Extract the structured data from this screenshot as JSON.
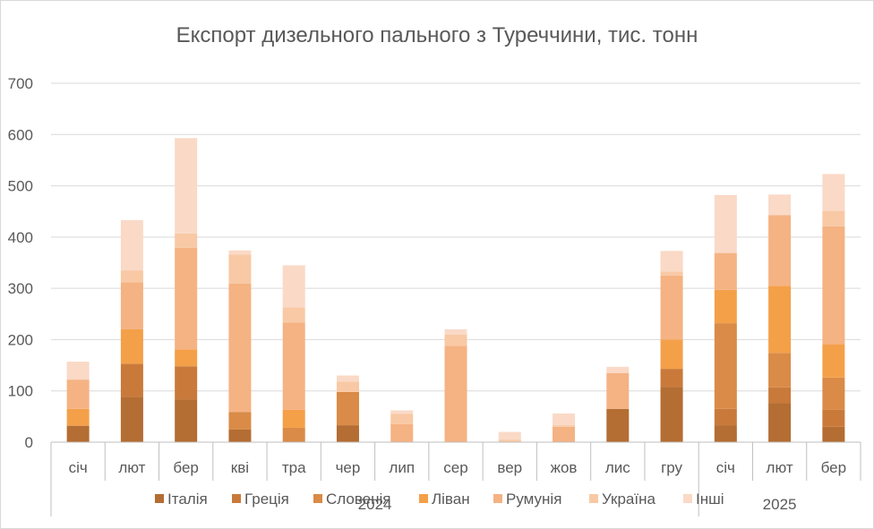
{
  "chart_data": {
    "type": "bar",
    "stacked": true,
    "title": "Експорт дизельного пального з Туреччини, тис. тонн",
    "xlabel": "",
    "ylabel": "",
    "ylim": [
      0,
      700
    ],
    "yticks": [
      "0",
      "100",
      "200",
      "300",
      "400",
      "500",
      "600",
      "700"
    ],
    "categories": [
      "січ",
      "лют",
      "бер",
      "кві",
      "тра",
      "чер",
      "лип",
      "сер",
      "вер",
      "жов",
      "лис",
      "гру",
      "січ",
      "лют",
      "бер"
    ],
    "year_groups": [
      {
        "label": "2024",
        "count": 12
      },
      {
        "label": "2025",
        "count": 3
      }
    ],
    "grid": true,
    "legend_position": "bottom",
    "series": [
      {
        "name": "Італія",
        "color": "#B46D32",
        "values": [
          32,
          88,
          83,
          25,
          0,
          33,
          0,
          0,
          0,
          0,
          65,
          108,
          33,
          76,
          30
        ]
      },
      {
        "name": "Греція",
        "color": "#C97A3A",
        "values": [
          0,
          65,
          65,
          0,
          0,
          0,
          0,
          0,
          0,
          0,
          0,
          35,
          32,
          31,
          33
        ]
      },
      {
        "name": "Словенія",
        "color": "#D98B47",
        "values": [
          0,
          0,
          0,
          34,
          28,
          65,
          0,
          0,
          0,
          0,
          0,
          0,
          167,
          67,
          63
        ]
      },
      {
        "name": "Ліван",
        "color": "#F4A049",
        "values": [
          33,
          67,
          33,
          0,
          35,
          0,
          0,
          0,
          0,
          0,
          0,
          57,
          65,
          131,
          65
        ]
      },
      {
        "name": "Румунія",
        "color": "#F5B283",
        "values": [
          57,
          92,
          198,
          250,
          170,
          0,
          35,
          188,
          0,
          30,
          70,
          125,
          72,
          138,
          230
        ]
      },
      {
        "name": "Україна",
        "color": "#F8C9A4",
        "values": [
          0,
          23,
          28,
          57,
          30,
          20,
          20,
          22,
          5,
          3,
          0,
          8,
          0,
          0,
          30
        ]
      },
      {
        "name": "Інші",
        "color": "#FAD9C7",
        "values": [
          35,
          98,
          186,
          8,
          82,
          12,
          7,
          10,
          15,
          23,
          12,
          40,
          113,
          40,
          72
        ]
      }
    ]
  }
}
